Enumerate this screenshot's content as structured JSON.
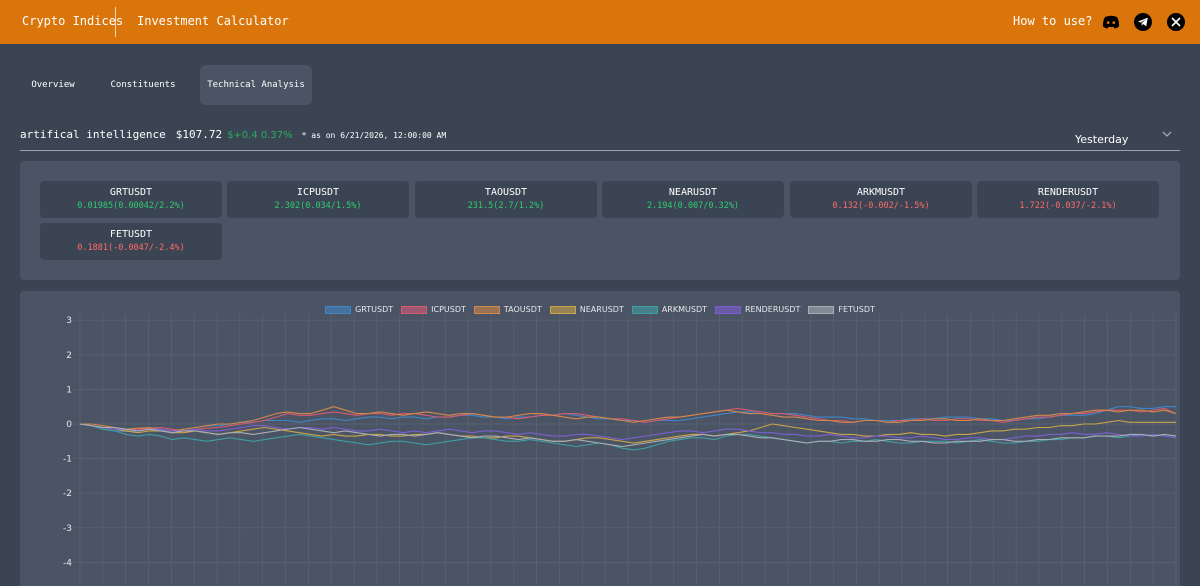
{
  "header": {
    "brand": "Crypto Indices",
    "nav_calculator": "Investment Calculator",
    "how_to_use": "How to use?",
    "icons": [
      "discord-icon",
      "telegram-icon",
      "x-icon"
    ],
    "accent": "#d9750b"
  },
  "tabs": [
    {
      "label": "Overview",
      "active": false
    },
    {
      "label": "Constituents",
      "active": false
    },
    {
      "label": "Technical Analysis",
      "active": true
    }
  ],
  "index": {
    "name": "artifical intelligence",
    "price": "$107.72",
    "change": "$+0.4 0.37%",
    "as_of": "* as on 6/21/2026, 12:00:00 AM",
    "range_selected": "Yesterday"
  },
  "tickers": [
    {
      "symbol": "GRTUSDT",
      "value": "0.01985(0.00042/2.2%)",
      "direction": "up"
    },
    {
      "symbol": "ICPUSDT",
      "value": "2.302(0.034/1.5%)",
      "direction": "up"
    },
    {
      "symbol": "TAOUSDT",
      "value": "231.5(2.7/1.2%)",
      "direction": "up"
    },
    {
      "symbol": "NEARUSDT",
      "value": "2.194(0.007/0.32%)",
      "direction": "up"
    },
    {
      "symbol": "ARKMUSDT",
      "value": "0.132(-0.002/-1.5%)",
      "direction": "down"
    },
    {
      "symbol": "RENDERUSDT",
      "value": "1.722(-0.037/-2.1%)",
      "direction": "down"
    },
    {
      "symbol": "FETUSDT",
      "value": "0.1881(-0.0047/-2.4%)",
      "direction": "down"
    }
  ],
  "colors": {
    "positive": "#2ecc71",
    "negative": "#ff6b6b"
  },
  "chart_data": {
    "type": "line",
    "title": "",
    "xlabel": "",
    "ylabel": "",
    "ylim": [
      -4.5,
      3.2
    ],
    "yticks": [
      3,
      2,
      1,
      0,
      -1,
      -2,
      -3,
      -4
    ],
    "grid": true,
    "legend_position": "top",
    "points": 96,
    "series": [
      {
        "name": "GRTUSDT",
        "color": "#3f86c6",
        "values": [
          0,
          -0.05,
          -0.15,
          -0.2,
          -0.22,
          -0.2,
          -0.15,
          -0.18,
          -0.2,
          -0.15,
          -0.1,
          -0.05,
          -0.05,
          0,
          0.05,
          0.05,
          0.1,
          0.1,
          0.1,
          0.05,
          0.1,
          0.15,
          0.15,
          0.1,
          0.15,
          0.2,
          0.2,
          0.15,
          0.2,
          0.2,
          0.15,
          0.2,
          0.2,
          0.25,
          0.25,
          0.2,
          0.2,
          0.15,
          0.2,
          0.2,
          0.25,
          0.25,
          0.3,
          0.25,
          0.2,
          0.15,
          0.15,
          0.1,
          0.1,
          0.05,
          0.1,
          0.1,
          0.1,
          0.15,
          0.2,
          0.25,
          0.3,
          0.35,
          0.35,
          0.35,
          0.3,
          0.3,
          0.3,
          0.25,
          0.2,
          0.2,
          0.2,
          0.15,
          0.15,
          0.1,
          0.1,
          0.1,
          0.15,
          0.15,
          0.15,
          0.2,
          0.2,
          0.2,
          0.15,
          0.15,
          0.1,
          0.1,
          0.15,
          0.15,
          0.2,
          0.25,
          0.25,
          0.25,
          0.3,
          0.4,
          0.5,
          0.5,
          0.45,
          0.45,
          0.5,
          0.5
        ]
      },
      {
        "name": "ICPUSDT",
        "color": "#d65a72",
        "values": [
          0,
          -0.05,
          -0.1,
          -0.15,
          -0.18,
          -0.15,
          -0.12,
          -0.1,
          -0.15,
          -0.2,
          -0.15,
          -0.12,
          -0.1,
          -0.05,
          0,
          0.05,
          0.1,
          0.2,
          0.3,
          0.25,
          0.25,
          0.3,
          0.35,
          0.3,
          0.25,
          0.3,
          0.3,
          0.25,
          0.3,
          0.3,
          0.25,
          0.2,
          0.2,
          0.25,
          0.3,
          0.25,
          0.2,
          0.2,
          0.15,
          0.2,
          0.25,
          0.25,
          0.3,
          0.3,
          0.25,
          0.2,
          0.15,
          0.15,
          0.1,
          0.05,
          0.1,
          0.15,
          0.2,
          0.25,
          0.3,
          0.35,
          0.4,
          0.45,
          0.4,
          0.35,
          0.3,
          0.3,
          0.25,
          0.2,
          0.15,
          0.1,
          0.1,
          0.05,
          0.1,
          0.1,
          0.05,
          0.1,
          0.1,
          0.15,
          0.1,
          0.1,
          0.15,
          0.15,
          0.1,
          0.1,
          0.05,
          0.1,
          0.15,
          0.2,
          0.2,
          0.25,
          0.3,
          0.3,
          0.35,
          0.4,
          0.4,
          0.4,
          0.35,
          0.4,
          0.45,
          0.3
        ]
      },
      {
        "name": "TAOUSDT",
        "color": "#d2884a",
        "values": [
          0,
          0,
          -0.05,
          -0.1,
          -0.15,
          -0.12,
          -0.1,
          -0.15,
          -0.2,
          -0.15,
          -0.1,
          -0.05,
          0,
          0,
          0.05,
          0.1,
          0.2,
          0.3,
          0.35,
          0.3,
          0.3,
          0.4,
          0.5,
          0.4,
          0.3,
          0.3,
          0.35,
          0.3,
          0.25,
          0.3,
          0.35,
          0.3,
          0.25,
          0.3,
          0.3,
          0.25,
          0.2,
          0.2,
          0.25,
          0.3,
          0.3,
          0.25,
          0.2,
          0.15,
          0.2,
          0.2,
          0.15,
          0.1,
          0.05,
          0.1,
          0.15,
          0.2,
          0.2,
          0.25,
          0.3,
          0.35,
          0.4,
          0.35,
          0.3,
          0.3,
          0.25,
          0.2,
          0.2,
          0.15,
          0.1,
          0.1,
          0.05,
          0.05,
          0.1,
          0.1,
          0.05,
          0.05,
          0.1,
          0.1,
          0.15,
          0.15,
          0.1,
          0.1,
          0.15,
          0.1,
          0.1,
          0.15,
          0.2,
          0.25,
          0.25,
          0.3,
          0.3,
          0.35,
          0.4,
          0.4,
          0.35,
          0.4,
          0.4,
          0.35,
          0.4,
          0.3
        ]
      },
      {
        "name": "NEARUSDT",
        "color": "#c9a44a",
        "values": [
          0,
          -0.05,
          -0.1,
          -0.15,
          -0.2,
          -0.25,
          -0.2,
          -0.2,
          -0.25,
          -0.25,
          -0.2,
          -0.25,
          -0.3,
          -0.25,
          -0.2,
          -0.15,
          -0.1,
          -0.15,
          -0.2,
          -0.25,
          -0.3,
          -0.35,
          -0.3,
          -0.35,
          -0.35,
          -0.3,
          -0.3,
          -0.35,
          -0.35,
          -0.3,
          -0.3,
          -0.25,
          -0.3,
          -0.35,
          -0.35,
          -0.4,
          -0.4,
          -0.35,
          -0.35,
          -0.4,
          -0.45,
          -0.5,
          -0.5,
          -0.45,
          -0.4,
          -0.4,
          -0.45,
          -0.5,
          -0.55,
          -0.5,
          -0.45,
          -0.4,
          -0.35,
          -0.3,
          -0.3,
          -0.35,
          -0.3,
          -0.25,
          -0.2,
          -0.1,
          0,
          -0.05,
          -0.1,
          -0.15,
          -0.2,
          -0.25,
          -0.3,
          -0.3,
          -0.35,
          -0.35,
          -0.3,
          -0.3,
          -0.25,
          -0.3,
          -0.3,
          -0.35,
          -0.3,
          -0.3,
          -0.25,
          -0.2,
          -0.2,
          -0.15,
          -0.15,
          -0.1,
          -0.1,
          -0.05,
          -0.05,
          0,
          0,
          0.05,
          0.1,
          0.05,
          0.05,
          0.05,
          0.05,
          0.05
        ]
      },
      {
        "name": "ARKMUSDT",
        "color": "#3e9ea3",
        "values": [
          0,
          -0.05,
          -0.15,
          -0.2,
          -0.3,
          -0.35,
          -0.3,
          -0.35,
          -0.45,
          -0.4,
          -0.45,
          -0.5,
          -0.45,
          -0.4,
          -0.45,
          -0.5,
          -0.45,
          -0.4,
          -0.35,
          -0.3,
          -0.35,
          -0.4,
          -0.45,
          -0.5,
          -0.55,
          -0.6,
          -0.55,
          -0.5,
          -0.5,
          -0.55,
          -0.6,
          -0.55,
          -0.5,
          -0.45,
          -0.4,
          -0.4,
          -0.45,
          -0.5,
          -0.5,
          -0.45,
          -0.5,
          -0.55,
          -0.6,
          -0.65,
          -0.6,
          -0.55,
          -0.6,
          -0.7,
          -0.75,
          -0.7,
          -0.6,
          -0.5,
          -0.45,
          -0.4,
          -0.4,
          -0.45,
          -0.35,
          -0.3,
          -0.3,
          -0.35,
          -0.4,
          -0.45,
          -0.5,
          -0.55,
          -0.5,
          -0.5,
          -0.55,
          -0.5,
          -0.5,
          -0.45,
          -0.5,
          -0.55,
          -0.55,
          -0.5,
          -0.5,
          -0.5,
          -0.55,
          -0.5,
          -0.45,
          -0.5,
          -0.55,
          -0.55,
          -0.5,
          -0.5,
          -0.45,
          -0.45,
          -0.4,
          -0.4,
          -0.35,
          -0.35,
          -0.4,
          -0.35,
          -0.3,
          -0.35,
          -0.3,
          -0.35
        ]
      },
      {
        "name": "RENDERUSDT",
        "color": "#7b5fd0",
        "values": [
          0,
          -0.05,
          -0.1,
          -0.15,
          -0.15,
          -0.2,
          -0.15,
          -0.15,
          -0.2,
          -0.2,
          -0.15,
          -0.2,
          -0.2,
          -0.15,
          -0.1,
          -0.05,
          -0.05,
          -0.1,
          -0.15,
          -0.1,
          -0.1,
          -0.15,
          -0.1,
          -0.15,
          -0.2,
          -0.2,
          -0.15,
          -0.2,
          -0.25,
          -0.2,
          -0.25,
          -0.2,
          -0.15,
          -0.2,
          -0.25,
          -0.2,
          -0.2,
          -0.25,
          -0.3,
          -0.25,
          -0.3,
          -0.35,
          -0.35,
          -0.3,
          -0.3,
          -0.35,
          -0.4,
          -0.45,
          -0.4,
          -0.35,
          -0.3,
          -0.25,
          -0.2,
          -0.2,
          -0.25,
          -0.2,
          -0.15,
          -0.15,
          -0.2,
          -0.25,
          -0.25,
          -0.3,
          -0.3,
          -0.35,
          -0.35,
          -0.3,
          -0.35,
          -0.4,
          -0.4,
          -0.35,
          -0.35,
          -0.4,
          -0.4,
          -0.35,
          -0.4,
          -0.45,
          -0.45,
          -0.4,
          -0.4,
          -0.45,
          -0.45,
          -0.4,
          -0.35,
          -0.35,
          -0.3,
          -0.3,
          -0.25,
          -0.3,
          -0.3,
          -0.25,
          -0.3,
          -0.35,
          -0.35,
          -0.3,
          -0.35,
          -0.4
        ]
      },
      {
        "name": "FETUSDT",
        "color": "#a9adb4",
        "values": [
          0,
          -0.05,
          -0.1,
          -0.1,
          -0.15,
          -0.2,
          -0.15,
          -0.2,
          -0.25,
          -0.2,
          -0.2,
          -0.25,
          -0.3,
          -0.25,
          -0.25,
          -0.3,
          -0.25,
          -0.2,
          -0.15,
          -0.1,
          -0.15,
          -0.2,
          -0.25,
          -0.2,
          -0.25,
          -0.3,
          -0.35,
          -0.3,
          -0.3,
          -0.35,
          -0.3,
          -0.25,
          -0.3,
          -0.35,
          -0.4,
          -0.35,
          -0.35,
          -0.4,
          -0.45,
          -0.4,
          -0.45,
          -0.5,
          -0.5,
          -0.45,
          -0.5,
          -0.55,
          -0.6,
          -0.65,
          -0.6,
          -0.55,
          -0.5,
          -0.45,
          -0.4,
          -0.35,
          -0.3,
          -0.35,
          -0.3,
          -0.3,
          -0.35,
          -0.4,
          -0.4,
          -0.45,
          -0.5,
          -0.55,
          -0.5,
          -0.5,
          -0.45,
          -0.45,
          -0.5,
          -0.5,
          -0.45,
          -0.45,
          -0.5,
          -0.5,
          -0.55,
          -0.55,
          -0.5,
          -0.5,
          -0.5,
          -0.45,
          -0.45,
          -0.5,
          -0.5,
          -0.45,
          -0.45,
          -0.4,
          -0.4,
          -0.4,
          -0.35,
          -0.35,
          -0.35,
          -0.3,
          -0.3,
          -0.35,
          -0.3,
          -0.35
        ]
      }
    ]
  }
}
